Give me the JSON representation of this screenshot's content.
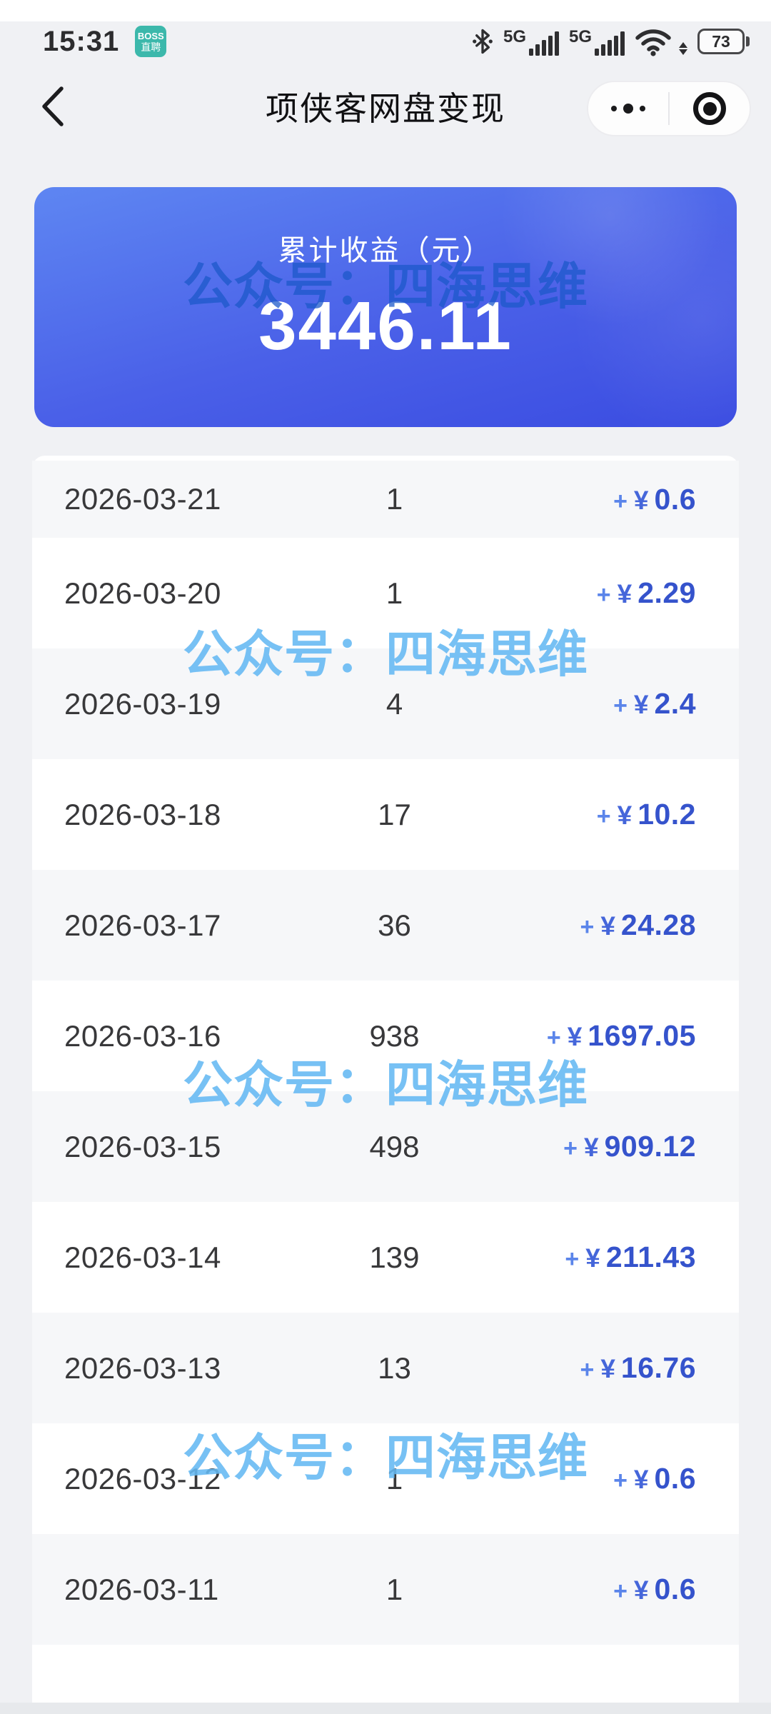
{
  "status_bar": {
    "time": "15:31",
    "badge_line1": "BOSS",
    "badge_line2": "直聘",
    "network_label_1": "5G",
    "network_label_2": "5G",
    "battery_percent": "73",
    "icons": [
      "bluetooth-icon",
      "cellular-signal-icon",
      "cellular-signal-icon",
      "wifi-icon",
      "battery-icon"
    ]
  },
  "nav": {
    "title": "项侠客网盘变现",
    "icons": {
      "back": "chevron-left-icon",
      "more": "three-dots-icon",
      "capsule_action": "target-circle-icon"
    }
  },
  "summary_card": {
    "label": "累计收益（元）",
    "value": "3446.11"
  },
  "watermark": {
    "text": "公众号：四海思维"
  },
  "list": {
    "plus": "+",
    "currency": "¥",
    "rows": [
      {
        "date": "2026-03-21",
        "count": "1",
        "amount": "0.6"
      },
      {
        "date": "2026-03-20",
        "count": "1",
        "amount": "2.29"
      },
      {
        "date": "2026-03-19",
        "count": "4",
        "amount": "2.4"
      },
      {
        "date": "2026-03-18",
        "count": "17",
        "amount": "10.2"
      },
      {
        "date": "2026-03-17",
        "count": "36",
        "amount": "24.28"
      },
      {
        "date": "2026-03-16",
        "count": "938",
        "amount": "1697.05"
      },
      {
        "date": "2026-03-15",
        "count": "498",
        "amount": "909.12"
      },
      {
        "date": "2026-03-14",
        "count": "139",
        "amount": "211.43"
      },
      {
        "date": "2026-03-13",
        "count": "13",
        "amount": "16.76"
      },
      {
        "date": "2026-03-12",
        "count": "1",
        "amount": "0.6"
      },
      {
        "date": "2026-03-11",
        "count": "1",
        "amount": "0.6"
      }
    ]
  },
  "colors": {
    "page_bg": "#f0f1f4",
    "card_gradient_top": "#5e86f2",
    "card_gradient_bottom": "#3a4ce1",
    "amount_blue": "#3553cc",
    "watermark_dark": "#1c58ca",
    "watermark_light": "#64b8f2",
    "badge_teal": "#3cb8ab",
    "row_stripe": "#f6f7f9"
  }
}
